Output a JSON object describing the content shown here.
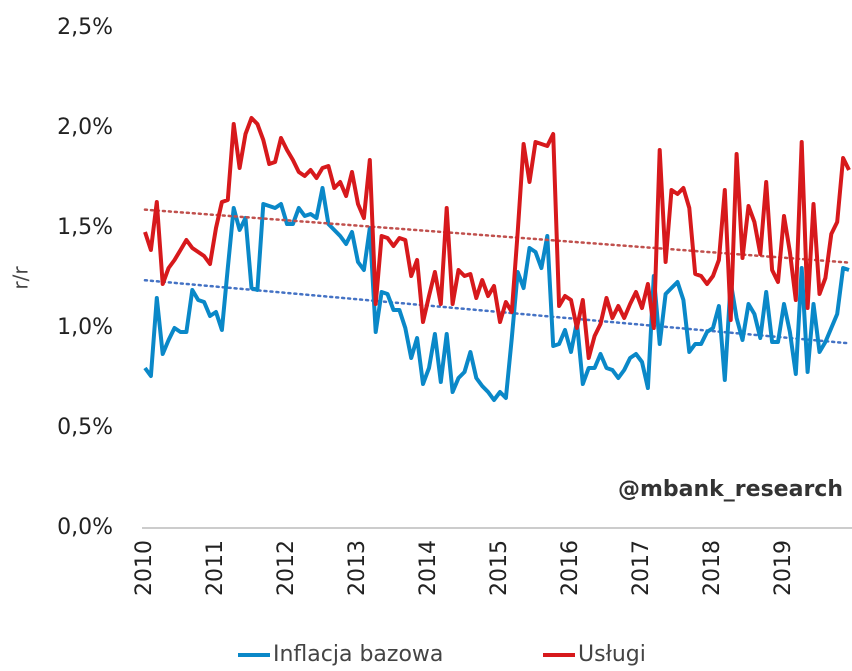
{
  "chart_data": {
    "type": "line",
    "watermark": "@mbank_research",
    "ylabel": "r/r",
    "categories": [
      "2010",
      null,
      null,
      null,
      null,
      null,
      null,
      null,
      null,
      null,
      null,
      null,
      "2011",
      null,
      null,
      null,
      null,
      null,
      null,
      null,
      null,
      null,
      null,
      null,
      "2012",
      null,
      null,
      null,
      null,
      null,
      null,
      null,
      null,
      null,
      null,
      null,
      "2013",
      null,
      null,
      null,
      null,
      null,
      null,
      null,
      null,
      null,
      null,
      null,
      "2014",
      null,
      null,
      null,
      null,
      null,
      null,
      null,
      null,
      null,
      null,
      null,
      "2015",
      null,
      null,
      null,
      null,
      null,
      null,
      null,
      null,
      null,
      null,
      null,
      "2016",
      null,
      null,
      null,
      null,
      null,
      null,
      null,
      null,
      null,
      null,
      null,
      "2017",
      null,
      null,
      null,
      null,
      null,
      null,
      null,
      null,
      null,
      null,
      null,
      "2018",
      null,
      null,
      null,
      null,
      null,
      null,
      null,
      null,
      null,
      null,
      null,
      "2019",
      null,
      null,
      null,
      null,
      null,
      null,
      null,
      null,
      null,
      null,
      null
    ],
    "series": [
      {
        "name": "Inflacja bazowa",
        "color": "#0a88c8",
        "trend_color": "#4472c4",
        "values": [
          0.8,
          0.76,
          1.15,
          0.87,
          0.94,
          1.0,
          0.98,
          0.98,
          1.19,
          1.14,
          1.13,
          1.06,
          1.08,
          0.99,
          1.3,
          1.6,
          1.49,
          1.55,
          1.2,
          1.19,
          1.62,
          1.61,
          1.6,
          1.62,
          1.52,
          1.52,
          1.6,
          1.56,
          1.57,
          1.55,
          1.7,
          1.52,
          1.49,
          1.46,
          1.42,
          1.48,
          1.33,
          1.29,
          1.5,
          0.98,
          1.18,
          1.17,
          1.09,
          1.09,
          1.0,
          0.85,
          0.95,
          0.72,
          0.8,
          0.97,
          0.73,
          0.97,
          0.68,
          0.75,
          0.78,
          0.88,
          0.75,
          0.71,
          0.68,
          0.64,
          0.68,
          0.65,
          0.95,
          1.28,
          1.2,
          1.4,
          1.38,
          1.3,
          1.46,
          0.91,
          0.92,
          0.99,
          0.88,
          1.03,
          0.72,
          0.8,
          0.8,
          0.87,
          0.8,
          0.79,
          0.75,
          0.79,
          0.85,
          0.87,
          0.83,
          0.7,
          1.26,
          0.92,
          1.17,
          1.2,
          1.23,
          1.14,
          0.88,
          0.92,
          0.92,
          0.98,
          1.0,
          1.11,
          0.74,
          1.23,
          1.05,
          0.94,
          1.12,
          1.07,
          0.95,
          1.18,
          0.93,
          0.93,
          1.12,
          0.98,
          0.77,
          1.3,
          0.78,
          1.12,
          0.88,
          0.93,
          1.0,
          1.07,
          1.3,
          1.29
        ]
      },
      {
        "name": "Usługi",
        "color": "#d7191c",
        "trend_color": "#c0504d",
        "values": [
          1.48,
          1.39,
          1.63,
          1.22,
          1.3,
          1.34,
          1.39,
          1.44,
          1.4,
          1.38,
          1.36,
          1.32,
          1.5,
          1.63,
          1.64,
          2.02,
          1.8,
          1.97,
          2.05,
          2.02,
          1.94,
          1.82,
          1.83,
          1.95,
          1.89,
          1.84,
          1.78,
          1.76,
          1.79,
          1.75,
          1.8,
          1.81,
          1.7,
          1.73,
          1.66,
          1.78,
          1.62,
          1.55,
          1.84,
          1.12,
          1.46,
          1.45,
          1.41,
          1.45,
          1.44,
          1.26,
          1.34,
          1.03,
          1.16,
          1.28,
          1.12,
          1.6,
          1.12,
          1.29,
          1.26,
          1.27,
          1.15,
          1.24,
          1.16,
          1.21,
          1.03,
          1.13,
          1.08,
          1.48,
          1.92,
          1.73,
          1.93,
          1.92,
          1.91,
          1.97,
          1.11,
          1.16,
          1.14,
          1.0,
          1.14,
          0.85,
          0.96,
          1.02,
          1.15,
          1.05,
          1.11,
          1.05,
          1.12,
          1.18,
          1.1,
          1.22,
          1.0,
          1.89,
          1.33,
          1.69,
          1.67,
          1.7,
          1.6,
          1.27,
          1.26,
          1.22,
          1.26,
          1.34,
          1.69,
          1.04,
          1.87,
          1.35,
          1.61,
          1.53,
          1.37,
          1.73,
          1.29,
          1.23,
          1.56,
          1.38,
          1.14,
          1.93,
          1.1,
          1.62,
          1.17,
          1.25,
          1.47,
          1.53,
          1.85,
          1.79
        ]
      }
    ],
    "trendline": true,
    "ylim": [
      0,
      2.5
    ],
    "yticks": [
      {
        "value": 0,
        "label": "0,0%"
      },
      {
        "value": 0.5,
        "label": "0,5%"
      },
      {
        "value": 1,
        "label": "1,0%"
      },
      {
        "value": 1.5,
        "label": "1,5%"
      },
      {
        "value": 2,
        "label": "2,0%"
      },
      {
        "value": 2.5,
        "label": "2,5%"
      }
    ],
    "grid": false,
    "legend": "bottom"
  }
}
